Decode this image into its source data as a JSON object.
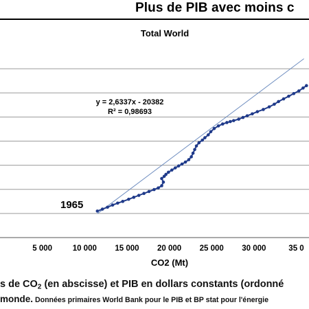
{
  "headline": "Plus de PIB avec moins c",
  "caption": {
    "line1_start": "s de CO",
    "line1_sub": "2",
    "line1_end": " (en abscisse) et PIB en dollars constants (ordonné",
    "line2_start": "monde.",
    "line2_small": " Données primaires World Bank pour le PIB et BP stat pour l'énergie"
  },
  "colors": {
    "series": "#1f3a8a",
    "trend": "#6f8ec0",
    "grid": "#9a9a9a",
    "axis": "#555555"
  },
  "chart_data": {
    "type": "scatter",
    "title": "Total World",
    "xlabel": "CO2 (Mt)",
    "ylabel": "",
    "xlim": [
      0,
      36500
    ],
    "ylim": [
      0,
      80000
    ],
    "x_ticks": [
      5000,
      10000,
      15000,
      20000,
      25000,
      30000,
      35000
    ],
    "x_tick_labels": [
      "5 000",
      "10 000",
      "15 000",
      "20 000",
      "25 000",
      "30 000",
      "35 0"
    ],
    "y_gridlines": [
      10000,
      20000,
      30000,
      40000,
      50000,
      60000,
      70000
    ],
    "grid": true,
    "legend": "none",
    "annotations": {
      "equation": "y = 2,6337x - 20382",
      "r_squared": "R² = 0,98693",
      "start_year": "1965"
    },
    "trendline": {
      "slope": 2.6337,
      "intercept": -20382
    },
    "series": [
      {
        "x": [
          11500,
          12100,
          12700,
          13300,
          13900,
          14500,
          15200,
          15800,
          16400,
          17000,
          17600,
          18200,
          18700,
          19100,
          19300,
          19100,
          19400,
          19600,
          19900,
          20300,
          20700,
          21100,
          21500,
          21900,
          22300,
          22600,
          22800,
          23000,
          23200,
          23500,
          23900,
          24200,
          24600,
          24900,
          25300,
          25800,
          26300,
          26800,
          27200,
          27600,
          28200,
          28700,
          29200,
          29800,
          30400,
          31100,
          31800,
          32400,
          32900,
          33500,
          34100,
          34700,
          35300,
          35800,
          36200
        ],
        "y": [
          11000,
          11800,
          12600,
          13500,
          14300,
          15000,
          15900,
          16700,
          17500,
          18300,
          19100,
          19900,
          20600,
          21500,
          23000,
          24500,
          25400,
          26200,
          27100,
          28000,
          28900,
          29700,
          30500,
          31300,
          32300,
          33500,
          35000,
          36500,
          38000,
          39300,
          40400,
          41400,
          42600,
          43900,
          45200,
          46300,
          47100,
          47700,
          48100,
          48500,
          49100,
          49800,
          50500,
          51300,
          52200,
          53100,
          54200,
          55300,
          56400,
          57500,
          58600,
          59700,
          60800,
          62000,
          63000
        ]
      }
    ]
  }
}
